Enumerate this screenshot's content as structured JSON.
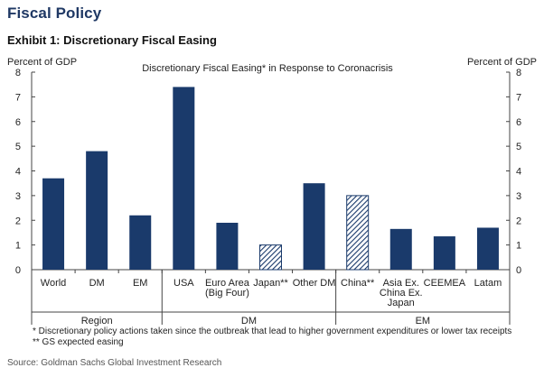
{
  "header": {
    "section_title": "Fiscal Policy",
    "exhibit_title": "Exhibit 1: Discretionary Fiscal Easing"
  },
  "chart_data": {
    "type": "bar",
    "title": "Discretionary Fiscal Easing* in Response to Coronacrisis",
    "ylabel_left": "Percent of GDP",
    "ylabel_right": "Percent of GDP",
    "ylim": [
      0,
      8
    ],
    "yticks": [
      0,
      1,
      2,
      3,
      4,
      5,
      6,
      7,
      8
    ],
    "grid": false,
    "categories": [
      "World",
      "DM",
      "EM",
      "USA",
      "Euro Area\n(Big Four)",
      "Japan**",
      "Other DM",
      "China**",
      "Asia Ex.\nChina Ex.\nJapan",
      "CEEMEA",
      "Latam"
    ],
    "values": [
      3.7,
      4.8,
      2.2,
      7.4,
      1.9,
      1.0,
      3.5,
      3.0,
      1.65,
      1.35,
      1.7
    ],
    "hatched": [
      false,
      false,
      false,
      false,
      false,
      true,
      false,
      true,
      false,
      false,
      false
    ],
    "groups": [
      {
        "label": "Region",
        "count": 3
      },
      {
        "label": "DM",
        "count": 4
      },
      {
        "label": "EM",
        "count": 4
      }
    ],
    "bar_color": "#1a3a6b"
  },
  "footnotes": [
    "* Discretionary policy actions taken since the outbreak that lead to higher government expenditures or lower tax receipts",
    "** GS expected easing"
  ],
  "source": "Source: Goldman Sachs Global Investment Research"
}
